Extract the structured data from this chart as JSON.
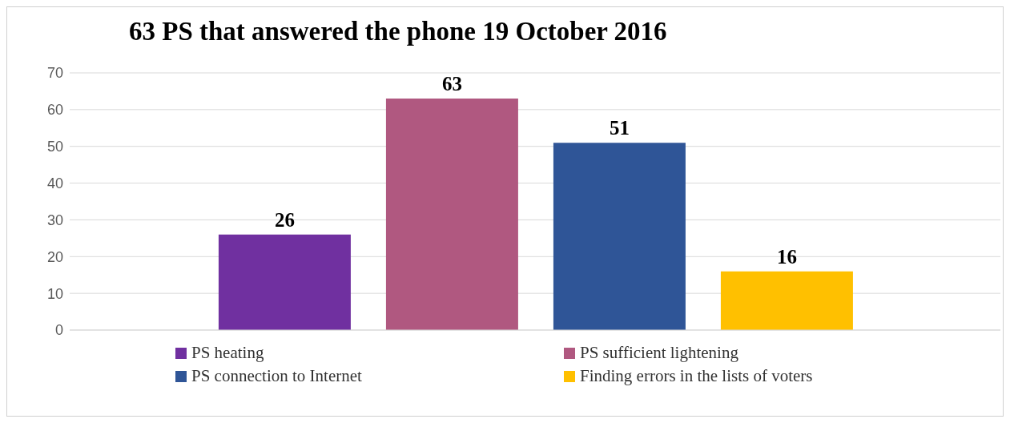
{
  "chart_data": {
    "type": "bar",
    "title": "63 PS that answered the phone 19 October 2016",
    "categories": [
      null
    ],
    "series": [
      {
        "name": "PS heating",
        "color": "#7030a0",
        "values": [
          26
        ]
      },
      {
        "name": "PS sufficient lightening",
        "color": "#b05880",
        "values": [
          63
        ]
      },
      {
        "name": "PS connection to Internet",
        "color": "#2f5597",
        "values": [
          51
        ]
      },
      {
        "name": "Finding errors in the lists of voters",
        "color": "#ffc000",
        "values": [
          16
        ]
      }
    ],
    "ylim": [
      0,
      70
    ],
    "yticks": [
      0,
      10,
      20,
      30,
      40,
      50,
      60,
      70
    ],
    "grid": "y",
    "legend": "bottom",
    "data_labels": true,
    "tick_labels": "y"
  }
}
